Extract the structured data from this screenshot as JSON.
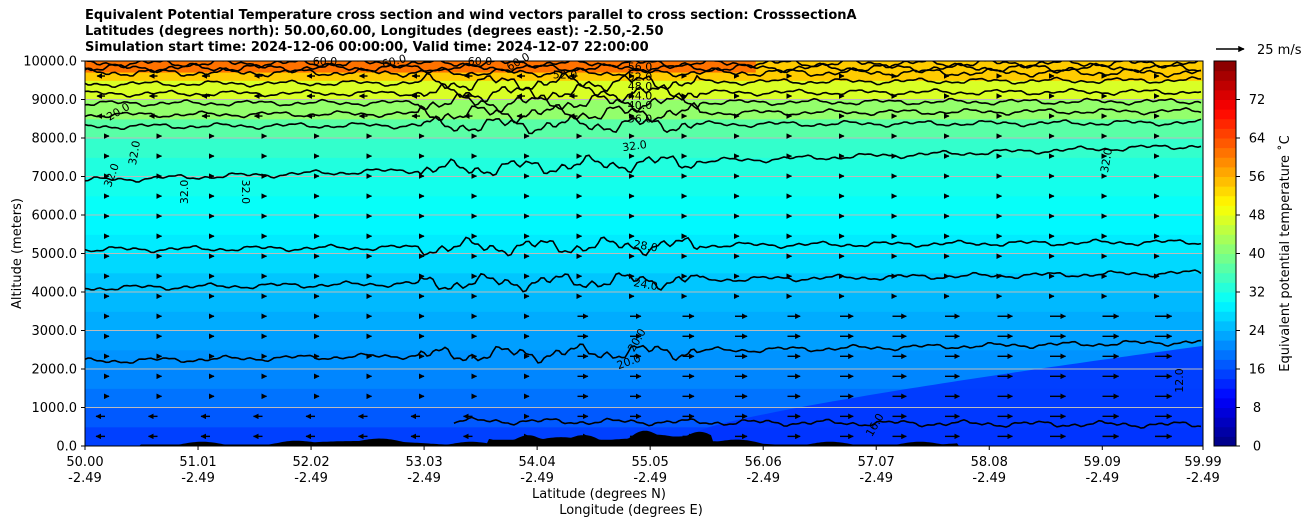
{
  "chart_data": {
    "type": "heatmap",
    "title_lines": [
      "Equivalent Potential Temperature cross section and wind vectors parallel to cross section: CrosssectionA",
      "Latitudes (degrees north): 50.00,60.00, Longitudes (degrees east): -2.50,-2.50",
      "Simulation start time: 2024-12-06 00:00:00, Valid time: 2024-12-07 22:00:00"
    ],
    "ylabel": "Altitude (meters)",
    "xlabel_1": "Latitude (degrees N)",
    "xlabel_2": "Longitude (degrees E)",
    "ylim": [
      0,
      10000
    ],
    "y_ticks": [
      "0.0",
      "1000.0",
      "2000.0",
      "3000.0",
      "4000.0",
      "5000.0",
      "6000.0",
      "7000.0",
      "8000.0",
      "9000.0",
      "10000.0"
    ],
    "x_ticks": [
      {
        "lat": "50.00",
        "lon": "-2.49"
      },
      {
        "lat": "51.01",
        "lon": "-2.49"
      },
      {
        "lat": "52.02",
        "lon": "-2.49"
      },
      {
        "lat": "53.03",
        "lon": "-2.49"
      },
      {
        "lat": "54.04",
        "lon": "-2.49"
      },
      {
        "lat": "55.05",
        "lon": "-2.49"
      },
      {
        "lat": "56.06",
        "lon": "-2.49"
      },
      {
        "lat": "57.07",
        "lon": "-2.49"
      },
      {
        "lat": "58.08",
        "lon": "-2.49"
      },
      {
        "lat": "59.09",
        "lon": "-2.49"
      },
      {
        "lat": "59.99",
        "lon": "-2.49"
      }
    ],
    "xlim": [
      50.0,
      59.99
    ],
    "colorbar": {
      "label": "Equivalent potential temperature ˚C",
      "range": [
        0,
        80
      ],
      "ticks": [
        "0",
        "8",
        "16",
        "24",
        "32",
        "40",
        "48",
        "56",
        "64",
        "72"
      ]
    },
    "quiver_key": "25 m/s",
    "theta_e_profile_heights": [
      0,
      500,
      1000,
      1500,
      2000,
      2500,
      3000,
      3500,
      4000,
      4500,
      5000,
      5500,
      6000,
      6500,
      7000,
      7500,
      8000,
      8500,
      9000,
      9500,
      10000
    ],
    "theta_e_profile_values": [
      14,
      16,
      18,
      20,
      21,
      22,
      23,
      24,
      25,
      26,
      28,
      29,
      30,
      31,
      32,
      33,
      35,
      39,
      44,
      50,
      58
    ],
    "contour_levels": [
      {
        "value": 20,
        "height_start": 2200,
        "height_end": 2700
      },
      {
        "value": 24,
        "height_start": 4100,
        "height_end": 4500
      },
      {
        "value": 28,
        "height_start": 5100,
        "height_end": 5300
      },
      {
        "value": 32,
        "height_start": 6900,
        "height_end": 7800
      },
      {
        "value": 36,
        "height_start": 8300,
        "height_end": 8400
      },
      {
        "value": 40,
        "height_start": 8600,
        "height_end": 8700
      },
      {
        "value": 44,
        "height_start": 8900,
        "height_end": 8950
      },
      {
        "value": 48,
        "height_start": 9150,
        "height_end": 9200
      },
      {
        "value": 52,
        "height_start": 9400,
        "height_end": 9500
      }
    ],
    "contour_labels": [
      "20.0",
      "20.0",
      "20.0",
      "24.0",
      "28.0",
      "32.0",
      "32.0",
      "32.0",
      "32.0",
      "32.0",
      "32.0",
      "36.0",
      "40.0",
      "44.0",
      "48.0",
      "52.0",
      "52.0",
      "56.0",
      "60.0",
      "60.0",
      "60.0",
      "60.0",
      "12.0",
      "16.0"
    ],
    "colors": {
      "contour": "#000000",
      "terrain": "#000000",
      "grid": "#bbbbbb"
    }
  }
}
